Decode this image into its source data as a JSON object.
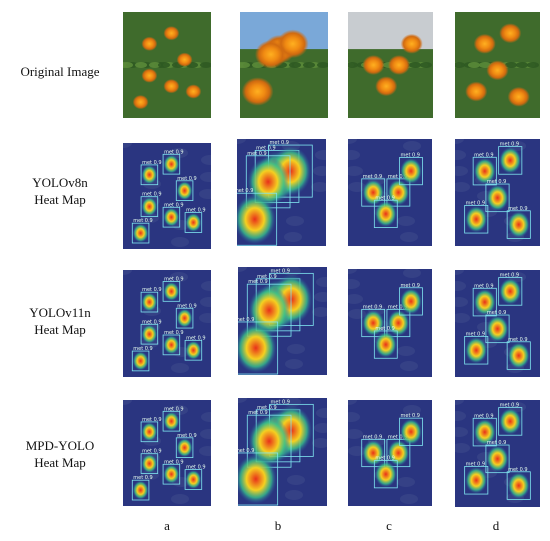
{
  "rows": [
    {
      "id": "original",
      "line1": "Original Image",
      "line2": ""
    },
    {
      "id": "yolov8n",
      "line1": "YOLOv8n",
      "line2": "Heat Map"
    },
    {
      "id": "yolov11n",
      "line1": "YOLOv11n",
      "line2": "Heat Map"
    },
    {
      "id": "mpd",
      "line1": "MPD-YOLO",
      "line2": "Heat Map"
    }
  ],
  "columns": [
    "a",
    "b",
    "c",
    "d"
  ],
  "box_label": "met 0.9",
  "colors": {
    "photo_green": "#3f6b2c",
    "flower_orange": "#f08a12",
    "heatmap_bg": "#2a3580",
    "heat_hot": "#e8301a",
    "box_outline": "#7fe6f0"
  }
}
